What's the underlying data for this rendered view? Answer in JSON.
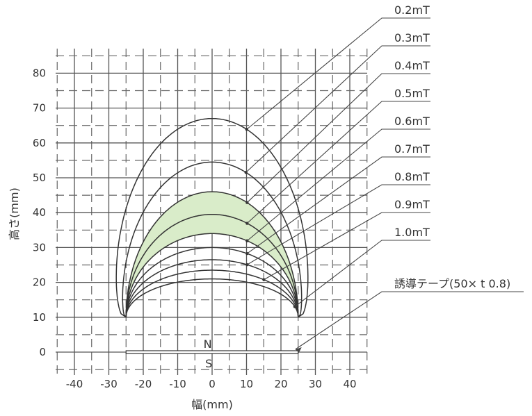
{
  "axes": {
    "xlabel": "幅(mm)",
    "ylabel": "高さ(mm)",
    "x_ticks": [
      "-40",
      "-30",
      "-20",
      "-10",
      "0",
      "10",
      "20",
      "30",
      "40"
    ],
    "y_ticks": [
      "0",
      "10",
      "20",
      "30",
      "40",
      "50",
      "60",
      "70",
      "80"
    ]
  },
  "contours": [
    {
      "label": "0.2mT",
      "height": 67,
      "half_width": 31,
      "bulge": 1.8
    },
    {
      "label": "0.3mT",
      "height": 54.5,
      "half_width": 27.5,
      "bulge": 1.3
    },
    {
      "label": "0.4mT",
      "height": 46,
      "half_width": 25,
      "bulge": 1.0
    },
    {
      "label": "0.5mT",
      "height": 39.5,
      "half_width": 25,
      "bulge": 1.0
    },
    {
      "label": "0.6mT",
      "height": 34,
      "half_width": 25,
      "bulge": 1.0
    },
    {
      "label": "0.7mT",
      "height": 30,
      "half_width": 25,
      "bulge": 1.0
    },
    {
      "label": "0.8mT",
      "height": 26.5,
      "half_width": 25,
      "bulge": 1.0
    },
    {
      "label": "0.9mT",
      "height": 23.5,
      "half_width": 25,
      "bulge": 1.0
    },
    {
      "label": "1.0mT",
      "height": 21,
      "half_width": 25,
      "bulge": 1.0
    }
  ],
  "shaded_band": {
    "outer": "0.4mT",
    "inner": "0.6mT",
    "color": "#d9ecc9"
  },
  "tape": {
    "label": "誘導テープ(50× t 0.8)",
    "width_mm": 50,
    "north": "N",
    "south": "S"
  }
}
